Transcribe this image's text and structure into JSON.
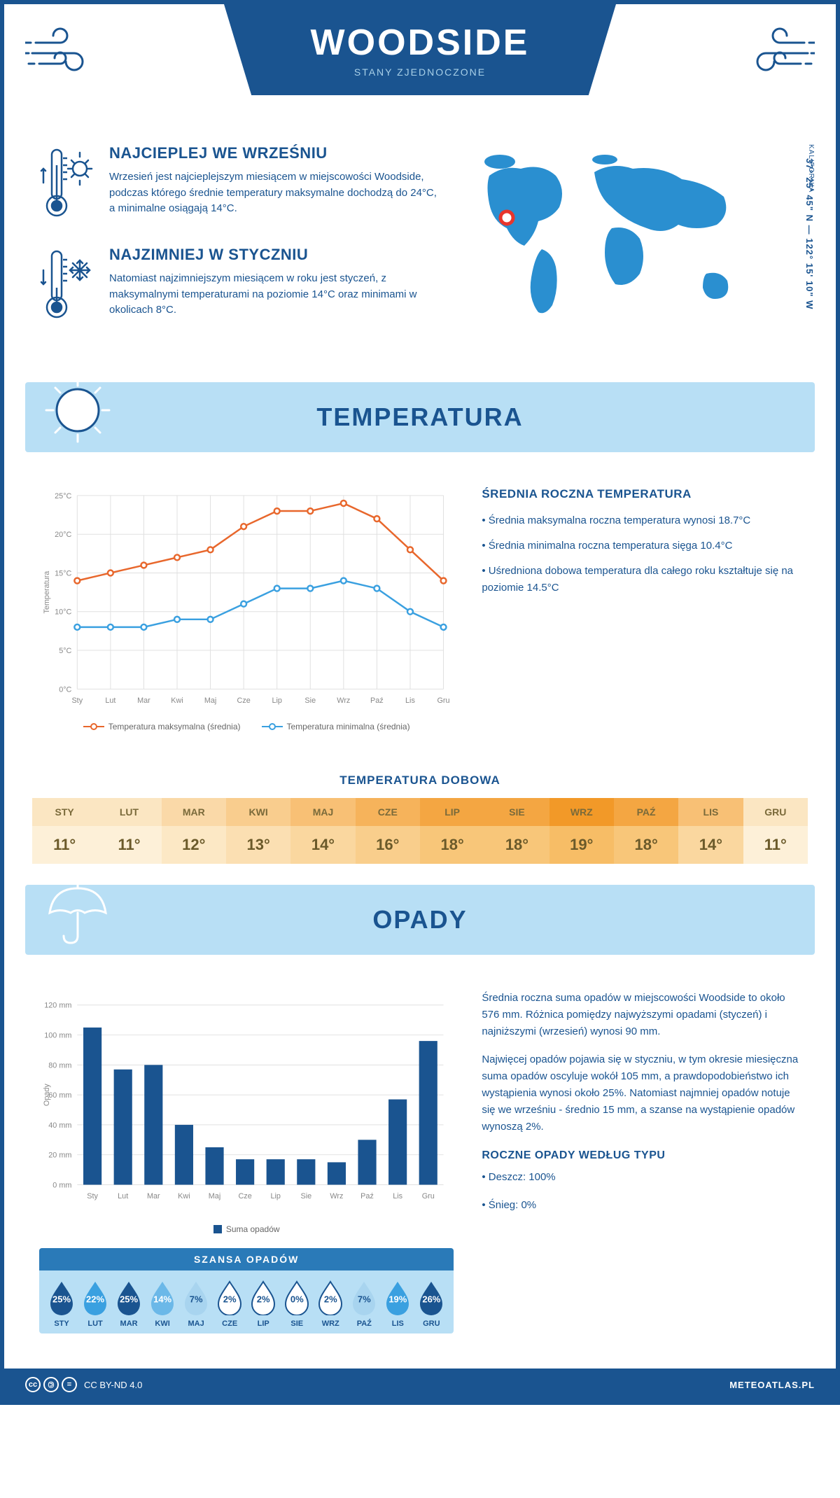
{
  "header": {
    "title": "WOODSIDE",
    "subtitle": "STANY ZJEDNOCZONE"
  },
  "region": "KALIFORNIA",
  "coords": "37° 25' 45\" N — 122° 15' 10\" W",
  "warm": {
    "title": "NAJCIEPLEJ WE WRZEŚNIU",
    "text": "Wrzesień jest najcieplejszym miesiącem w miejscowości Woodside, podczas którego średnie temperatury maksymalne dochodzą do 24°C, a minimalne osiągają 14°C."
  },
  "cold": {
    "title": "NAJZIMNIEJ W STYCZNIU",
    "text": "Natomiast najzimniejszym miesiącem w roku jest styczeń, z maksymalnymi temperaturami na poziomie 14°C oraz minimami w okolicach 8°C."
  },
  "section_temp": "TEMPERATURA",
  "section_precip": "OPADY",
  "temp_chart": {
    "type": "line",
    "months": [
      "Sty",
      "Lut",
      "Mar",
      "Kwi",
      "Maj",
      "Cze",
      "Lip",
      "Sie",
      "Wrz",
      "Paź",
      "Lis",
      "Gru"
    ],
    "max_series": [
      14,
      15,
      16,
      17,
      18,
      21,
      23,
      23,
      24,
      22,
      18,
      14
    ],
    "min_series": [
      8,
      8,
      8,
      9,
      9,
      11,
      13,
      13,
      14,
      13,
      10,
      8
    ],
    "max_color": "#e8672c",
    "min_color": "#3aa0e0",
    "ylabel": "Temperatura",
    "ylim": [
      0,
      25
    ],
    "ytick_step": 5,
    "grid_color": "#e0e0e0",
    "legend_max": "Temperatura maksymalna (średnia)",
    "legend_min": "Temperatura minimalna (średnia)"
  },
  "temp_side": {
    "title": "ŚREDNIA ROCZNA TEMPERATURA",
    "b1": "• Średnia maksymalna roczna temperatura wynosi 18.7°C",
    "b2": "• Średnia minimalna roczna temperatura sięga 10.4°C",
    "b3": "• Uśredniona dobowa temperatura dla całego roku kształtuje się na poziomie 14.5°C"
  },
  "daily": {
    "title": "TEMPERATURA DOBOWA",
    "months": [
      "STY",
      "LUT",
      "MAR",
      "KWI",
      "MAJ",
      "CZE",
      "LIP",
      "SIE",
      "WRZ",
      "PAŹ",
      "LIS",
      "GRU"
    ],
    "values": [
      "11°",
      "11°",
      "12°",
      "13°",
      "14°",
      "16°",
      "18°",
      "18°",
      "19°",
      "18°",
      "14°",
      "11°"
    ],
    "head_colors": [
      "#fbe6c2",
      "#fbe6c2",
      "#fad9a8",
      "#f9cd8e",
      "#f8c075",
      "#f6b35b",
      "#f4a642",
      "#f4a642",
      "#f29928",
      "#f4a642",
      "#f8c075",
      "#fbe6c2"
    ],
    "val_colors": [
      "#fdf0d8",
      "#fdf0d8",
      "#fce8c5",
      "#fbdfb2",
      "#fad79f",
      "#f9ce8c",
      "#f8c679",
      "#f8c679",
      "#f7bd66",
      "#f8c679",
      "#fad79f",
      "#fdf0d8"
    ]
  },
  "precip_chart": {
    "type": "bar",
    "months": [
      "Sty",
      "Lut",
      "Mar",
      "Kwi",
      "Maj",
      "Cze",
      "Lip",
      "Sie",
      "Wrz",
      "Paź",
      "Lis",
      "Gru"
    ],
    "values": [
      105,
      77,
      80,
      40,
      25,
      17,
      17,
      17,
      15,
      30,
      57,
      96
    ],
    "bar_color": "#1a5490",
    "ylabel": "Opady",
    "ylim": [
      0,
      120
    ],
    "ytick_step": 20,
    "grid_color": "#e0e0e0",
    "legend": "Suma opadów"
  },
  "precip_side": {
    "p1": "Średnia roczna suma opadów w miejscowości Woodside to około 576 mm. Różnica pomiędzy najwyższymi opadami (styczeń) i najniższymi (wrzesień) wynosi 90 mm.",
    "p2": "Najwięcej opadów pojawia się w styczniu, w tym okresie miesięczna suma opadów oscyluje wokół 105 mm, a prawdopodobieństwo ich wystąpienia wynosi około 25%. Natomiast najmniej opadów notuje się we wrześniu - średnio 15 mm, a szanse na wystąpienie opadów wynoszą 2%.",
    "types_title": "ROCZNE OPADY WEDŁUG TYPU",
    "types_b1": "• Deszcz: 100%",
    "types_b2": "• Śnieg: 0%"
  },
  "chance": {
    "title": "SZANSA OPADÓW",
    "months": [
      "STY",
      "LUT",
      "MAR",
      "KWI",
      "MAJ",
      "CZE",
      "LIP",
      "SIE",
      "WRZ",
      "PAŹ",
      "LIS",
      "GRU"
    ],
    "values": [
      "25%",
      "22%",
      "25%",
      "14%",
      "7%",
      "2%",
      "2%",
      "0%",
      "2%",
      "7%",
      "19%",
      "26%"
    ],
    "fill_colors": [
      "#1a5490",
      "#3aa0e0",
      "#1a5490",
      "#6bb8e8",
      "#a8d4ef",
      "#ffffff",
      "#ffffff",
      "#ffffff",
      "#ffffff",
      "#a8d4ef",
      "#3aa0e0",
      "#1a5490"
    ],
    "text_colors": [
      "#ffffff",
      "#ffffff",
      "#ffffff",
      "#ffffff",
      "#1a5490",
      "#1a5490",
      "#1a5490",
      "#1a5490",
      "#1a5490",
      "#1a5490",
      "#ffffff",
      "#ffffff"
    ]
  },
  "footer": {
    "license": "CC BY-ND 4.0",
    "site": "METEOATLAS.PL"
  }
}
